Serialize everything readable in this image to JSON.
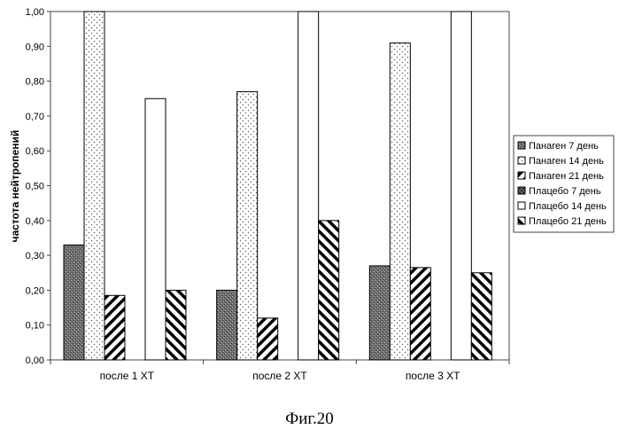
{
  "chart_data": {
    "type": "bar",
    "ylabel": "частота нейтропений",
    "ylim": [
      0,
      1.0
    ],
    "yticks": [
      "0,00",
      "0,10",
      "0,20",
      "0,30",
      "0,40",
      "0,50",
      "0,60",
      "0,70",
      "0,80",
      "0,90",
      "1,00"
    ],
    "categories": [
      "после 1 ХТ",
      "после 2 ХТ",
      "после 3 ХТ"
    ],
    "series": [
      {
        "name": "Панаген 7 день",
        "pattern": "dark-speckle",
        "values": [
          0.33,
          0.2,
          0.27
        ]
      },
      {
        "name": "Панаген 14 день",
        "pattern": "dots",
        "values": [
          1.0,
          0.77,
          0.91
        ]
      },
      {
        "name": "Панаген 21 день",
        "pattern": "diag-up",
        "values": [
          0.185,
          0.12,
          0.265
        ]
      },
      {
        "name": "Плацебо 7 день",
        "pattern": "dark-check",
        "values": [
          0,
          0,
          0
        ]
      },
      {
        "name": "Плацебо 14 день",
        "pattern": "white",
        "values": [
          0.75,
          1.0,
          1.0
        ]
      },
      {
        "name": "Плацебо 21 день",
        "pattern": "diag-down",
        "values": [
          0.2,
          0.4,
          0.25
        ]
      }
    ],
    "legend_position": "right",
    "grid": false
  },
  "caption": "Фиг.20"
}
